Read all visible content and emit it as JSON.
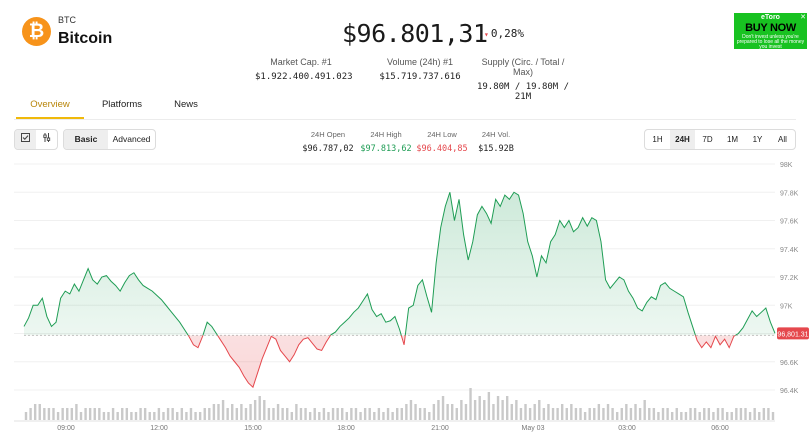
{
  "coin": {
    "logo_glyph": "₿",
    "symbol": "BTC",
    "name": "Bitcoin",
    "logo_color": "#f7931a"
  },
  "price": {
    "value": "$96.801,31",
    "change_arrow": "▾",
    "change": "0,28%"
  },
  "stats": [
    {
      "label": "Market Cap. #1",
      "value": "$1.922.400.491.023"
    },
    {
      "label": "Volume (24h) #1",
      "value": "$15.719.737.616"
    },
    {
      "label": "Supply (Circ. / Total / Max)",
      "value": "19.80M / 19.80M / 21M"
    }
  ],
  "ad": {
    "brand": "eToro",
    "cta": "BUY NOW",
    "disclaimer": "Don't invest unless you're prepared to lose all the money you invest",
    "close": "✕"
  },
  "tabs": [
    "Overview",
    "Platforms",
    "News"
  ],
  "toolbar": {
    "icon_buttons": [
      "checkbox-icon",
      "sliders-icon"
    ],
    "modes": [
      "Basic",
      "Advanced"
    ],
    "daily": [
      {
        "label": "24H Open",
        "value": "$96.787,02"
      },
      {
        "label": "24H High",
        "value": "$97.813,62"
      },
      {
        "label": "24H Low",
        "value": "$96.404,85"
      },
      {
        "label": "24H Vol.",
        "value": "$15.92B"
      }
    ],
    "ranges": [
      "1H",
      "24H",
      "7D",
      "1M",
      "1Y",
      "All"
    ],
    "active_range": "24H"
  },
  "chart_data": {
    "type": "line",
    "baseline": 96787.02,
    "last_price_label": "96,801.31",
    "y_ticks": [
      "98K",
      "97.8K",
      "97.6K",
      "97.4K",
      "97.2K",
      "97K",
      "96.8K",
      "96.6K",
      "96.4K"
    ],
    "y_range": [
      96400,
      98000
    ],
    "x_ticks": [
      "09:00",
      "12:00",
      "15:00",
      "18:00",
      "21:00",
      "May 03",
      "03:00",
      "06:00"
    ],
    "colors": {
      "up": "#1f9d55",
      "down": "#e5484d",
      "volume": "#c9c9c9"
    },
    "price_series": [
      96850,
      96910,
      97000,
      97000,
      97050,
      96920,
      96850,
      96880,
      97050,
      97100,
      97080,
      97150,
      97100,
      97180,
      97260,
      97180,
      97150,
      97200,
      97210,
      97170,
      97140,
      97100,
      97160,
      97210,
      97230,
      97180,
      97140,
      97120,
      97100,
      97070,
      97040,
      97000,
      96960,
      96920,
      96880,
      96830,
      96780,
      96720,
      96700,
      96780,
      96880,
      96850,
      96800,
      96750,
      96700,
      96640,
      96600,
      96560,
      96500,
      96450,
      96420,
      96520,
      96620,
      96700,
      96780,
      96760,
      96680,
      96640,
      96600,
      96650,
      96720,
      96760,
      96770,
      96730,
      96690,
      96680,
      96740,
      96790,
      96810,
      96850,
      96880,
      96910,
      96950,
      96980,
      97030,
      97080,
      96970,
      96920,
      96940,
      96880,
      96890,
      96920,
      96830,
      96720,
      96980,
      97000,
      97140,
      97180,
      97060,
      96950,
      97300,
      97550,
      97700,
      97800,
      97600,
      97750,
      97500,
      97320,
      97450,
      97640,
      97700,
      97650,
      97580,
      97750,
      97700,
      97780,
      97750,
      97800,
      97780,
      97650,
      97450,
      97350,
      97200,
      97350,
      97300,
      97450,
      97500,
      97600,
      97550,
      97600,
      97520,
      97550,
      97620,
      97560,
      97620,
      97600,
      97450,
      97180,
      97120,
      97160,
      97200,
      97180,
      97100,
      97050,
      96980,
      96960,
      97020,
      97060,
      97040,
      97140,
      97160,
      97120,
      97100,
      97080,
      97060,
      96950,
      96850,
      96750,
      96700,
      96740,
      96700,
      96780,
      96720,
      96760,
      96700,
      96780,
      96800,
      96840,
      96900,
      96960,
      96920,
      96950,
      96980,
      96880,
      96801.31
    ],
    "volume_series": [
      2,
      3,
      4,
      4,
      3,
      3,
      3,
      2,
      3,
      3,
      3,
      4,
      2,
      3,
      3,
      3,
      3,
      2,
      2,
      3,
      2,
      3,
      3,
      2,
      2,
      3,
      3,
      2,
      2,
      3,
      2,
      3,
      3,
      2,
      3,
      2,
      3,
      2,
      2,
      3,
      3,
      4,
      4,
      5,
      3,
      4,
      3,
      4,
      3,
      4,
      5,
      6,
      5,
      3,
      3,
      4,
      3,
      3,
      2,
      4,
      3,
      3,
      2,
      3,
      2,
      3,
      2,
      3,
      3,
      3,
      2,
      3,
      3,
      2,
      3,
      3,
      2,
      3,
      2,
      3,
      2,
      3,
      3,
      4,
      5,
      4,
      3,
      3,
      2,
      4,
      5,
      6,
      4,
      4,
      3,
      5,
      4,
      8,
      5,
      6,
      5,
      7,
      4,
      6,
      5,
      6,
      4,
      5,
      3,
      4,
      3,
      4,
      5,
      3,
      4,
      3,
      3,
      4,
      3,
      4,
      3,
      3,
      2,
      3,
      3,
      4,
      3,
      4,
      3,
      2,
      3,
      4,
      3,
      4,
      3,
      5,
      3,
      3,
      2,
      3,
      3,
      2,
      3,
      2,
      2,
      3,
      3,
      2,
      3,
      3,
      2,
      3,
      3,
      2,
      2,
      3,
      3,
      3,
      2,
      3,
      2,
      3,
      3,
      2
    ]
  }
}
